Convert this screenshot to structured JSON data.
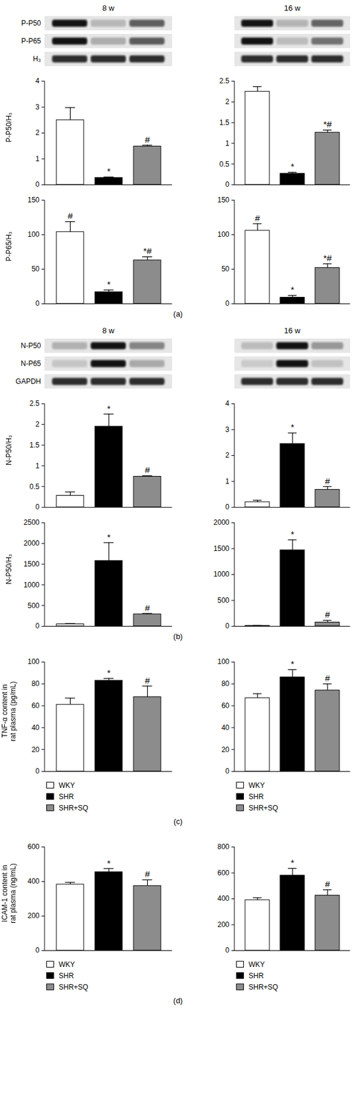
{
  "chart_data": [
    {
      "type": "bar",
      "y_label": "P-P50/H₃",
      "categories": [
        "WKY",
        "SHR",
        "SHR+SQ"
      ],
      "values": [
        2.5,
        0.27,
        1.48
      ],
      "errors": [
        0.48,
        0.03,
        0.05
      ],
      "significance": [
        null,
        "*",
        "#"
      ],
      "colors": [
        "#ffffff",
        "#000000",
        "#8c8c8c"
      ],
      "ylim": [
        0,
        4
      ],
      "yticks": [
        0,
        1,
        2,
        3,
        4
      ],
      "tick_labels": "y"
    },
    {
      "type": "bar",
      "categories": [
        "WKY",
        "SHR",
        "SHR+SQ"
      ],
      "values": [
        2.25,
        0.27,
        1.26
      ],
      "errors": [
        0.12,
        0.03,
        0.06
      ],
      "significance": [
        null,
        "*",
        "*#"
      ],
      "colors": [
        "#ffffff",
        "#000000",
        "#8c8c8c"
      ],
      "ylim": [
        0,
        2.5
      ],
      "yticks": [
        0,
        0.5,
        1,
        1.5,
        2,
        2.5
      ],
      "tick_labels": "y"
    },
    {
      "type": "bar",
      "y_label": "P-P65/H₃",
      "categories": [
        "WKY",
        "SHR",
        "SHR+SQ"
      ],
      "values": [
        104,
        17,
        63
      ],
      "errors": [
        15,
        3,
        5
      ],
      "significance": [
        "#",
        "*",
        "*#"
      ],
      "colors": [
        "#ffffff",
        "#000000",
        "#8c8c8c"
      ],
      "ylim": [
        0,
        150
      ],
      "yticks": [
        0,
        50,
        100,
        150
      ],
      "tick_labels": "y"
    },
    {
      "type": "bar",
      "categories": [
        "WKY",
        "SHR",
        "SHR+SQ"
      ],
      "values": [
        106,
        9,
        52
      ],
      "errors": [
        10,
        3,
        6
      ],
      "significance": [
        "#",
        "*",
        "*#"
      ],
      "colors": [
        "#ffffff",
        "#000000",
        "#8c8c8c"
      ],
      "ylim": [
        0,
        150
      ],
      "yticks": [
        0,
        50,
        100,
        150
      ],
      "tick_labels": "y"
    },
    {
      "type": "bar",
      "y_label": "N-P50/H₃",
      "categories": [
        "WKY",
        "SHR",
        "SHR+SQ"
      ],
      "values": [
        0.28,
        1.95,
        0.74
      ],
      "errors": [
        0.09,
        0.3,
        0.02
      ],
      "significance": [
        null,
        "*",
        "#"
      ],
      "colors": [
        "#ffffff",
        "#000000",
        "#8c8c8c"
      ],
      "ylim": [
        0,
        2.5
      ],
      "yticks": [
        0,
        0.5,
        1,
        1.5,
        2,
        2.5
      ],
      "tick_labels": "y"
    },
    {
      "type": "bar",
      "categories": [
        "WKY",
        "SHR",
        "SHR+SQ"
      ],
      "values": [
        0.2,
        2.45,
        0.68
      ],
      "errors": [
        0.07,
        0.42,
        0.12
      ],
      "significance": [
        null,
        "*",
        "#"
      ],
      "colors": [
        "#ffffff",
        "#000000",
        "#8c8c8c"
      ],
      "ylim": [
        0,
        4
      ],
      "yticks": [
        0,
        1,
        2,
        3,
        4
      ],
      "tick_labels": "y"
    },
    {
      "type": "bar",
      "y_label": "N-P50/H₃",
      "categories": [
        "WKY",
        "SHR",
        "SHR+SQ"
      ],
      "values": [
        50,
        1580,
        290
      ],
      "errors": [
        15,
        440,
        20
      ],
      "significance": [
        null,
        "*",
        "#"
      ],
      "colors": [
        "#ffffff",
        "#000000",
        "#8c8c8c"
      ],
      "ylim": [
        0,
        2500
      ],
      "yticks": [
        0,
        500,
        1000,
        1500,
        2000,
        2500
      ],
      "tick_labels": "y"
    },
    {
      "type": "bar",
      "categories": [
        "WKY",
        "SHR",
        "SHR+SQ"
      ],
      "values": [
        10,
        1470,
        75
      ],
      "errors": [
        5,
        200,
        40
      ],
      "significance": [
        null,
        "*",
        "#"
      ],
      "colors": [
        "#ffffff",
        "#000000",
        "#8c8c8c"
      ],
      "ylim": [
        0,
        2000
      ],
      "yticks": [
        0,
        500,
        1000,
        1500,
        2000
      ],
      "tick_labels": "y"
    },
    {
      "type": "bar",
      "y_label": "TNF-α content in\nrat plasma (pg/mL)",
      "categories": [
        "WKY",
        "SHR",
        "SHR+SQ"
      ],
      "values": [
        61,
        83,
        68
      ],
      "errors": [
        6,
        2,
        10
      ],
      "significance": [
        null,
        "*",
        "#"
      ],
      "colors": [
        "#ffffff",
        "#000000",
        "#8c8c8c"
      ],
      "ylim": [
        0,
        100
      ],
      "yticks": [
        0,
        20,
        40,
        60,
        80,
        100
      ],
      "tick_labels": "y",
      "legend": "bottom"
    },
    {
      "type": "bar",
      "categories": [
        "WKY",
        "SHR",
        "SHR+SQ"
      ],
      "values": [
        67,
        86,
        74
      ],
      "errors": [
        4,
        7,
        6
      ],
      "significance": [
        null,
        "*",
        "#"
      ],
      "colors": [
        "#ffffff",
        "#000000",
        "#8c8c8c"
      ],
      "ylim": [
        0,
        100
      ],
      "yticks": [
        0,
        20,
        40,
        60,
        80,
        100
      ],
      "tick_labels": "y",
      "legend": "bottom"
    },
    {
      "type": "bar",
      "y_label": "ICAM-1 content in\nrat plasma (ng/mL)",
      "categories": [
        "WKY",
        "SHR",
        "SHR+SQ"
      ],
      "values": [
        383,
        455,
        375
      ],
      "errors": [
        12,
        20,
        35
      ],
      "significance": [
        null,
        "*",
        "#"
      ],
      "colors": [
        "#ffffff",
        "#000000",
        "#8c8c8c"
      ],
      "ylim": [
        0,
        600
      ],
      "yticks": [
        0,
        200,
        400,
        600
      ],
      "tick_labels": "y",
      "legend": "bottom"
    },
    {
      "type": "bar",
      "categories": [
        "WKY",
        "SHR",
        "SHR+SQ"
      ],
      "values": [
        390,
        580,
        425
      ],
      "errors": [
        18,
        55,
        45
      ],
      "significance": [
        null,
        "*",
        "#"
      ],
      "colors": [
        "#ffffff",
        "#000000",
        "#8c8c8c"
      ],
      "ylim": [
        0,
        800
      ],
      "yticks": [
        0,
        200,
        400,
        600,
        800
      ],
      "tick_labels": "y",
      "legend": "bottom"
    }
  ],
  "figure": {
    "panels": [
      {
        "label": "(a)",
        "columns": [
          "8 w",
          "16 w"
        ],
        "blots": [
          "P-P50",
          "P-P65",
          "H₃"
        ]
      },
      {
        "label": "(b)",
        "columns": [
          "8 w",
          "16 w"
        ],
        "blots": [
          "N-P50",
          "N-P65",
          "GAPDH"
        ]
      },
      {
        "label": "(c)"
      },
      {
        "label": "(d)"
      }
    ]
  }
}
